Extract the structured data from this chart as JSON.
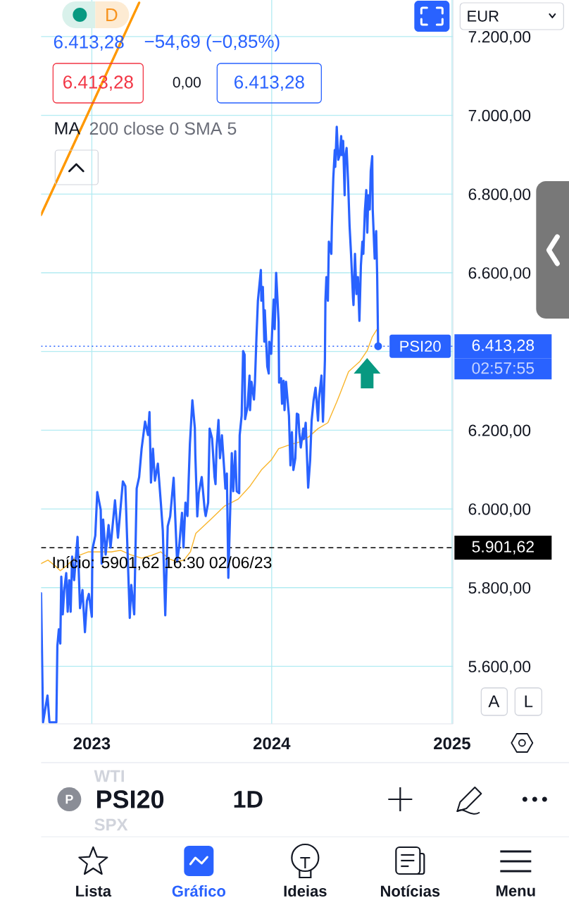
{
  "chart_data": {
    "type": "line",
    "title": "PSI20",
    "subtitle": "1D",
    "xlim": [
      "2022-09-20",
      "2025-01-03"
    ],
    "ylim": [
      5454,
      7293
    ],
    "xticks": [
      {
        "value": "2023-01-01",
        "label": "2023"
      },
      {
        "value": "2024-01-01",
        "label": "2024"
      },
      {
        "value": "2025-01-01",
        "label": "2025"
      }
    ],
    "yticks": [
      {
        "value": 5600,
        "label": "5.600,00"
      },
      {
        "value": 5800,
        "label": "5.800,00"
      },
      {
        "value": 6000,
        "label": "6.000,00"
      },
      {
        "value": 6200,
        "label": "6.200,00"
      },
      {
        "value": 6400,
        "label": null
      },
      {
        "value": 6600,
        "label": "6.600,00"
      },
      {
        "value": 6800,
        "label": "6.800,00"
      },
      {
        "value": 7000,
        "label": "7.000,00"
      },
      {
        "value": 7200,
        "label": "7.200,00"
      }
    ],
    "grid": true,
    "series": [
      {
        "name": "PSI20",
        "color": "#2962ff",
        "x": [
          "2022-09-20",
          "2022-09-24",
          "2022-10-03",
          "2022-10-07",
          "2022-10-21",
          "2022-10-23",
          "2022-10-26",
          "2022-10-29",
          "2022-10-31",
          "2022-11-03",
          "2022-11-06",
          "2022-11-10",
          "2022-11-13",
          "2022-11-16",
          "2022-11-19",
          "2022-11-22",
          "2022-11-26",
          "2022-12-03",
          "2022-12-08",
          "2022-12-13",
          "2022-12-18",
          "2022-12-22",
          "2022-12-26",
          "2023-01-01",
          "2023-01-02",
          "2023-01-08",
          "2023-01-12",
          "2023-01-19",
          "2023-01-21",
          "2023-01-24",
          "2023-01-29",
          "2023-02-04",
          "2023-02-08",
          "2023-02-17",
          "2023-02-23",
          "2023-03-05",
          "2023-03-10",
          "2023-03-19",
          "2023-03-22",
          "2023-03-28",
          "2023-04-02",
          "2023-04-07",
          "2023-04-12",
          "2023-04-19",
          "2023-04-25",
          "2023-04-28",
          "2023-05-01",
          "2023-05-05",
          "2023-05-09",
          "2023-05-15",
          "2023-05-21",
          "2023-05-25",
          "2023-05-30",
          "2023-06-04",
          "2023-06-09",
          "2023-06-16",
          "2023-06-23",
          "2023-06-27",
          "2023-07-03",
          "2023-07-06",
          "2023-07-10",
          "2023-07-14",
          "2023-07-19",
          "2023-07-24",
          "2023-07-29",
          "2023-07-30",
          "2023-08-03",
          "2023-08-06",
          "2023-08-12",
          "2023-08-18",
          "2023-08-20",
          "2023-08-25",
          "2023-08-28",
          "2023-09-02",
          "2023-09-07",
          "2023-09-09",
          "2023-09-11",
          "2023-09-15",
          "2023-09-18",
          "2023-09-22",
          "2023-09-27",
          "2023-09-29",
          "2023-10-02",
          "2023-10-05",
          "2023-10-12",
          "2023-10-15",
          "2023-10-19",
          "2023-10-22",
          "2023-10-27",
          "2023-10-28",
          "2023-11-01",
          "2023-11-04",
          "2023-11-07",
          "2023-11-08",
          "2023-11-13",
          "2023-11-17",
          "2023-11-18",
          "2023-11-21",
          "2023-11-26",
          "2023-11-28",
          "2023-12-01",
          "2023-12-04",
          "2023-12-10",
          "2023-12-11",
          "2023-12-14",
          "2023-12-17",
          "2023-12-18",
          "2023-12-23",
          "2023-12-26",
          "2023-12-27",
          "2023-12-31",
          "2024-01-02",
          "2024-01-05",
          "2024-01-07",
          "2024-01-10",
          "2024-01-15",
          "2024-01-16",
          "2024-01-20",
          "2024-01-22",
          "2024-01-25",
          "2024-01-27",
          "2024-01-30",
          "2024-02-05",
          "2024-02-08",
          "2024-02-11",
          "2024-02-14",
          "2024-02-18",
          "2024-02-21",
          "2024-02-24",
          "2024-02-26",
          "2024-02-29",
          "2024-03-05",
          "2024-03-06",
          "2024-03-10",
          "2024-03-12",
          "2024-03-15",
          "2024-03-19",
          "2024-03-22",
          "2024-03-26",
          "2024-03-30",
          "2024-04-04",
          "2024-04-06",
          "2024-04-11",
          "2024-04-14",
          "2024-04-16",
          "2024-04-18",
          "2024-04-19",
          "2024-04-21",
          "2024-04-24",
          "2024-04-26",
          "2024-05-01",
          "2024-05-02",
          "2024-05-05",
          "2024-05-08",
          "2024-05-09",
          "2024-05-12",
          "2024-05-15",
          "2024-05-18",
          "2024-05-21",
          "2024-05-22",
          "2024-05-25",
          "2024-05-28",
          "2024-05-29",
          "2024-06-01",
          "2024-06-04",
          "2024-06-07",
          "2024-06-10",
          "2024-06-14",
          "2024-06-15",
          "2024-06-18",
          "2024-06-21",
          "2024-06-24",
          "2024-06-27",
          "2024-06-30",
          "2024-07-03",
          "2024-07-05",
          "2024-07-08",
          "2024-07-11",
          "2024-07-13",
          "2024-07-15",
          "2024-07-18",
          "2024-07-20",
          "2024-07-23",
          "2024-07-24",
          "2024-07-27",
          "2024-07-28",
          "2024-07-31",
          "2024-08-02",
          "2024-08-04"
        ],
        "values": [
          5786,
          5458,
          5526,
          5458,
          5458,
          5651,
          5694,
          5658,
          5828,
          5732,
          5794,
          5837,
          5739,
          5819,
          5739,
          5879,
          5819,
          5929,
          5748,
          5794,
          5687,
          5766,
          5784,
          5726,
          5896,
          5932,
          6043,
          5998,
          5861,
          5973,
          5884,
          5959,
          5902,
          6022,
          5927,
          6070,
          6058,
          5723,
          5807,
          5732,
          6052,
          6081,
          6153,
          6222,
          6188,
          6246,
          6067,
          6153,
          6072,
          6115,
          6016,
          5945,
          5730,
          5956,
          5981,
          6079,
          5866,
          5902,
          5990,
          5902,
          6016,
          5982,
          6165,
          6276,
          6206,
          6138,
          5981,
          6040,
          6081,
          5998,
          5982,
          6016,
          6204,
          6179,
          6081,
          6063,
          6153,
          6226,
          6129,
          6187,
          6093,
          6052,
          6090,
          5825,
          6142,
          6045,
          6147,
          6045,
          6040,
          6187,
          6237,
          6401,
          6392,
          6228,
          6260,
          6339,
          6251,
          6323,
          6278,
          6323,
          6434,
          6529,
          6607,
          6529,
          6564,
          6425,
          6505,
          6362,
          6344,
          6425,
          6394,
          6455,
          6532,
          6457,
          6600,
          6475,
          6321,
          6332,
          6267,
          6326,
          6251,
          6323,
          6237,
          6111,
          6195,
          6099,
          6129,
          6242,
          6240,
          6195,
          6156,
          6204,
          6178,
          6219,
          6153,
          6054,
          6124,
          6224,
          6276,
          6308,
          6224,
          6281,
          6339,
          6222,
          6290,
          6380,
          6529,
          6589,
          6529,
          6679,
          6648,
          6715,
          6840,
          6912,
          6869,
          6971,
          6887,
          6899,
          6947,
          6899,
          6935,
          6797,
          6890,
          6917,
          6833,
          6720,
          6648,
          6536,
          6518,
          6648,
          6546,
          6589,
          6478,
          6618,
          6679,
          6648,
          6756,
          6810,
          6702,
          6797,
          6761,
          6858,
          6896,
          6761,
          6666,
          6636,
          6706,
          6595,
          6413.28
        ]
      },
      {
        "color": "#f9b52b",
        "x": [
          "2022-09-20",
          "2022-10-04",
          "2022-10-19",
          "2022-10-29",
          "2022-11-12",
          "2022-11-30",
          "2022-12-25",
          "2023-01-17",
          "2023-02-10",
          "2023-02-28",
          "2023-03-20",
          "2023-04-12",
          "2023-05-02",
          "2023-05-21",
          "2023-06-07",
          "2023-06-23",
          "2023-07-07",
          "2023-07-20",
          "2023-07-31",
          "2023-08-29",
          "2023-09-27",
          "2023-10-25",
          "2023-11-18",
          "2023-12-11",
          "2023-12-31",
          "2024-01-15",
          "2024-02-02",
          "2024-02-26",
          "2024-03-16",
          "2024-04-04",
          "2024-04-24",
          "2024-05-12",
          "2024-05-19",
          "2024-06-05",
          "2024-06-28",
          "2024-07-13",
          "2024-07-23",
          "2024-08-02"
        ],
        "values": [
          5861,
          5870,
          5855,
          5843,
          5857,
          5879,
          5891,
          5891,
          5891,
          5895,
          5884,
          5875,
          5882,
          5891,
          5873,
          5866,
          5870,
          5891,
          5938,
          5972,
          6007,
          6025,
          6058,
          6099,
          6124,
          6153,
          6161,
          6170,
          6183,
          6204,
          6219,
          6272,
          6294,
          6349,
          6375,
          6403,
          6437,
          6457
        ]
      },
      {
        "color": "#ff9800",
        "x": [
          "2022-09-20",
          "2023-04-07"
        ],
        "values": [
          6747,
          7286
        ]
      }
    ],
    "ref_lines": [
      {
        "axis": "y",
        "value": 6413.28,
        "label": "6.413,28",
        "color": "#2962ff",
        "line_style": "dotted"
      },
      {
        "axis": "y",
        "value": 5901.62,
        "label": "5.901,62",
        "color": "#000000",
        "line_style": "dashed"
      }
    ],
    "annotations": [
      "6.413,28",
      "−54,69 (−0,85%)",
      "6.413,28",
      "0,00",
      "6.413,28",
      "MA",
      "200 close 0 SMA 5",
      "D",
      "EUR",
      "02:57:55",
      "Início: 5901,62 16:30 02/06/23",
      "A",
      "L",
      "WTI",
      "SPX",
      "P",
      "Lista",
      "Gráfico",
      "Ideias",
      "Notícias",
      "Menu"
    ]
  }
}
